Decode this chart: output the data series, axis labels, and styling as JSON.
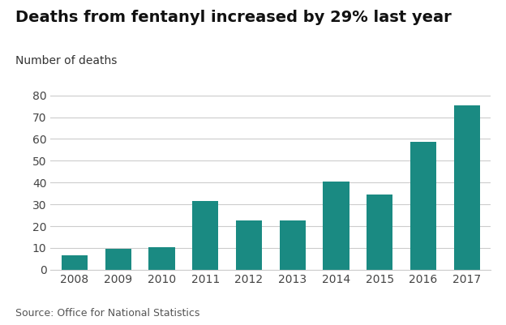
{
  "title": "Deaths from fentanyl increased by 29% last year",
  "ylabel": "Number of deaths",
  "source": "Source: Office for National Statistics",
  "categories": [
    "2008",
    "2009",
    "2010",
    "2011",
    "2012",
    "2013",
    "2014",
    "2015",
    "2016",
    "2017"
  ],
  "values": [
    6.5,
    9.5,
    10.5,
    31.5,
    22.5,
    22.5,
    40.5,
    34.5,
    58.5,
    75.5
  ],
  "bar_color": "#1a8a82",
  "background_color": "#ffffff",
  "ylim": [
    0,
    82
  ],
  "yticks": [
    0,
    10,
    20,
    30,
    40,
    50,
    60,
    70,
    80
  ],
  "title_fontsize": 14,
  "ylabel_fontsize": 10,
  "tick_fontsize": 10,
  "source_fontsize": 9
}
